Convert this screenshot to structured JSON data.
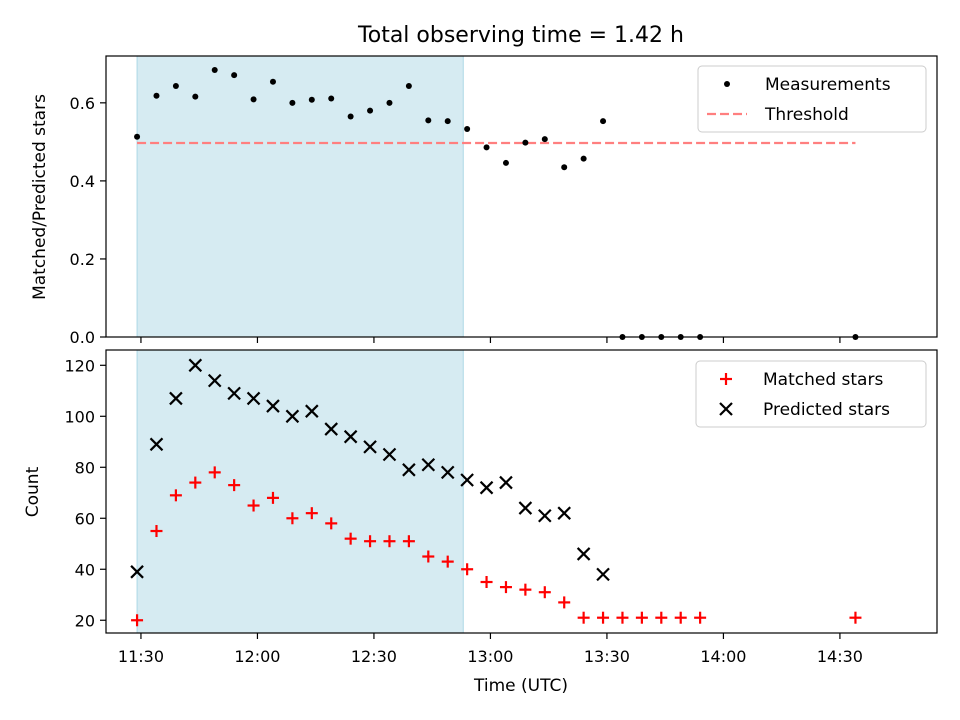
{
  "figure": {
    "title": "Total observing time = 1.42 h"
  },
  "colors": {
    "shade": "#add8e6",
    "threshold": "#ff7f7f",
    "matched": "#ff0000",
    "predicted": "#000000",
    "measurement": "#000000"
  },
  "chart_data": [
    {
      "type": "scatter",
      "title": "Total observing time = 1.42 h",
      "ylabel": "Matched/Predicted stars",
      "xlim": [
        "11:21",
        "14:55"
      ],
      "ylim": [
        0,
        0.72
      ],
      "yticks": [
        "0.0",
        "0.2",
        "0.4",
        "0.6"
      ],
      "shaded_span": [
        "11:29",
        "12:53"
      ],
      "legend_position": "top-right",
      "threshold": {
        "name": "Threshold",
        "value": 0.497,
        "x_start": "11:29",
        "x_end": "14:34"
      },
      "series": [
        {
          "name": "Measurements",
          "x": [
            "11:29",
            "11:34",
            "11:39",
            "11:44",
            "11:49",
            "11:54",
            "11:59",
            "12:04",
            "12:09",
            "12:14",
            "12:19",
            "12:24",
            "12:29",
            "12:34",
            "12:39",
            "12:44",
            "12:49",
            "12:54",
            "12:59",
            "13:04",
            "13:09",
            "13:14",
            "13:19",
            "13:24",
            "13:29",
            "13:34",
            "13:39",
            "13:44",
            "13:49",
            "13:54",
            "14:34"
          ],
          "values": [
            0.513,
            0.618,
            0.643,
            0.616,
            0.684,
            0.671,
            0.609,
            0.654,
            0.6,
            0.608,
            0.611,
            0.565,
            0.58,
            0.6,
            0.643,
            0.555,
            0.553,
            0.533,
            0.486,
            0.446,
            0.498,
            0.507,
            0.435,
            0.457,
            0.553,
            0,
            0,
            0,
            0,
            0,
            0
          ]
        }
      ]
    },
    {
      "type": "scatter",
      "ylabel": "Count",
      "xlabel": "Time (UTC)",
      "xlim": [
        "11:21",
        "14:55"
      ],
      "ylim": [
        15,
        126
      ],
      "xticks": [
        "11:30",
        "12:00",
        "12:30",
        "13:00",
        "13:30",
        "14:00",
        "14:30"
      ],
      "yticks": [
        "20",
        "40",
        "60",
        "80",
        "100",
        "120"
      ],
      "shaded_span": [
        "11:29",
        "12:53"
      ],
      "legend_position": "top-right",
      "series": [
        {
          "name": "Matched stars",
          "marker": "plus",
          "x": [
            "11:29",
            "11:34",
            "11:39",
            "11:44",
            "11:49",
            "11:54",
            "11:59",
            "12:04",
            "12:09",
            "12:14",
            "12:19",
            "12:24",
            "12:29",
            "12:34",
            "12:39",
            "12:44",
            "12:49",
            "12:54",
            "12:59",
            "13:04",
            "13:09",
            "13:14",
            "13:19",
            "13:24",
            "13:29",
            "13:34",
            "13:39",
            "13:44",
            "13:49",
            "13:54",
            "14:34"
          ],
          "values": [
            20,
            55,
            69,
            74,
            78,
            73,
            65,
            68,
            60,
            62,
            58,
            52,
            51,
            51,
            51,
            45,
            43,
            40,
            35,
            33,
            32,
            31,
            27,
            21,
            21,
            21,
            21,
            21,
            21,
            21,
            21
          ]
        },
        {
          "name": "Predicted stars",
          "marker": "x",
          "x": [
            "11:29",
            "11:34",
            "11:39",
            "11:44",
            "11:49",
            "11:54",
            "11:59",
            "12:04",
            "12:09",
            "12:14",
            "12:19",
            "12:24",
            "12:29",
            "12:34",
            "12:39",
            "12:44",
            "12:49",
            "12:54",
            "12:59",
            "13:04",
            "13:09",
            "13:14",
            "13:19",
            "13:24",
            "13:29"
          ],
          "values": [
            39,
            89,
            107,
            120,
            114,
            109,
            107,
            104,
            100,
            102,
            95,
            92,
            88,
            85,
            79,
            81,
            78,
            75,
            72,
            74,
            64,
            61,
            62,
            46,
            38
          ]
        }
      ]
    }
  ]
}
